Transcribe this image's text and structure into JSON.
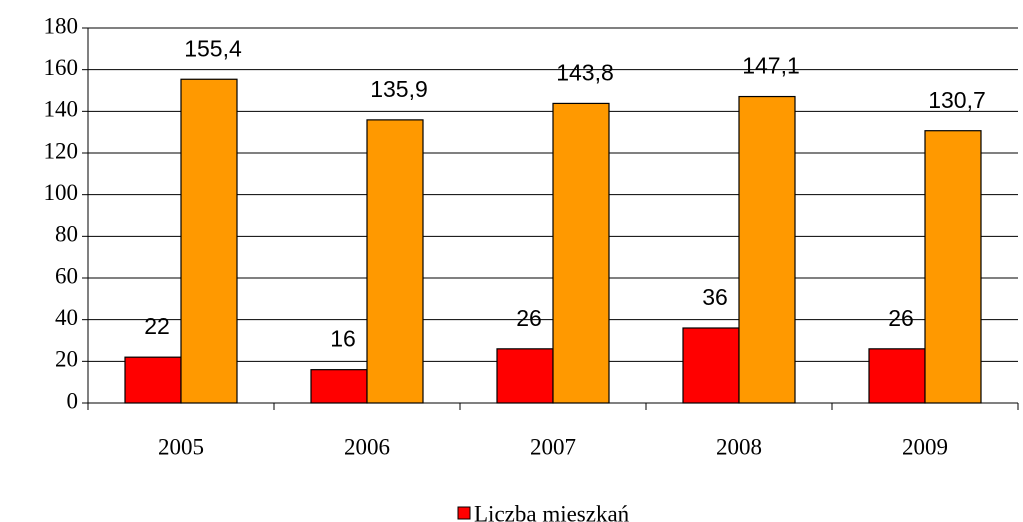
{
  "chart_data": {
    "type": "bar",
    "categories": [
      "2005",
      "2006",
      "2007",
      "2008",
      "2009"
    ],
    "series": [
      {
        "name": "Liczba mieszkań",
        "color": "#ff0000",
        "values": [
          22,
          16,
          26,
          36,
          26
        ]
      },
      {
        "color": "#ff9900",
        "values": [
          155.4,
          135.9,
          143.8,
          147.1,
          130.7
        ],
        "value_labels": [
          "155,4",
          "135,9",
          "143,8",
          "147,1",
          "130,7"
        ]
      }
    ],
    "ylim": [
      0,
      180
    ],
    "yticks": [
      0,
      20,
      40,
      60,
      80,
      100,
      120,
      140,
      160,
      180
    ],
    "grid": true,
    "legend": "bottom"
  }
}
